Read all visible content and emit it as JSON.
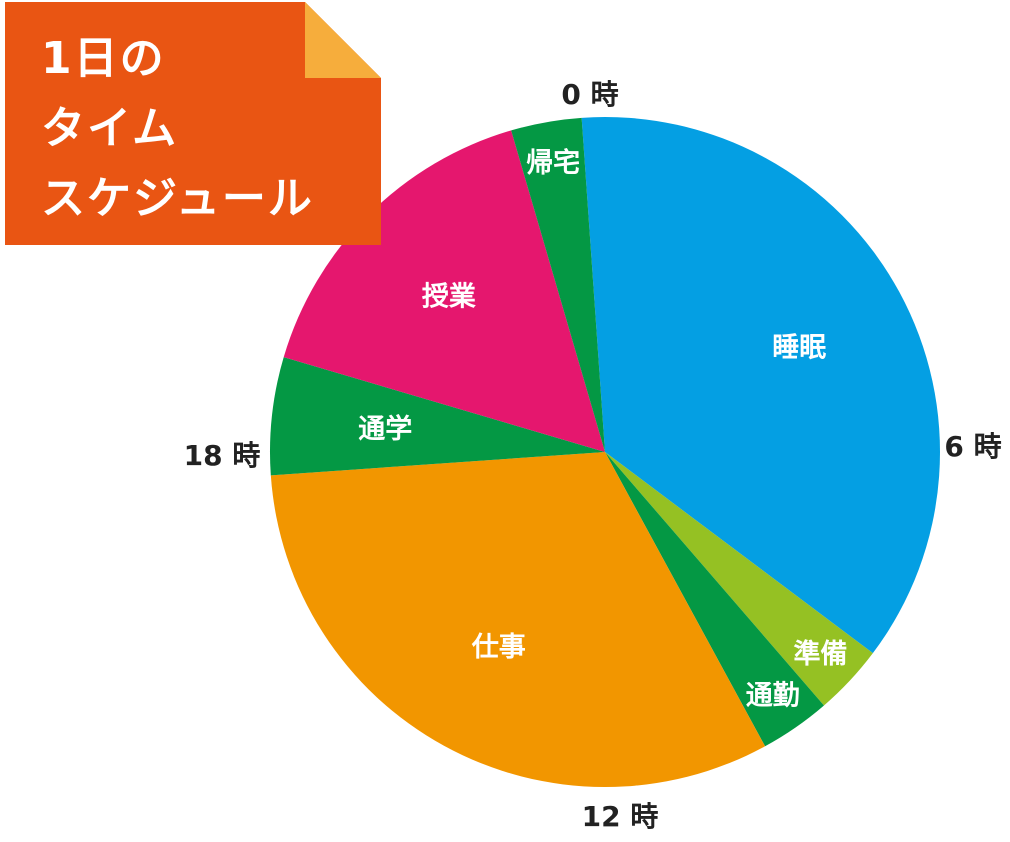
{
  "title": {
    "lines": [
      "1日の",
      "タイム",
      "スケジュール"
    ],
    "bg_color": "#e95513",
    "fold_color": "#f6ad3c"
  },
  "chart_data": {
    "type": "pie",
    "unit": "hours",
    "clockwise_from_top": true,
    "slices": [
      {
        "label": "睡眠",
        "value": 8.0,
        "color": "#049fe3"
      },
      {
        "label": "準備",
        "value": 0.75,
        "color": "#95c123"
      },
      {
        "label": "通勤",
        "value": 0.75,
        "color": "#049844"
      },
      {
        "label": "仕事",
        "value": 7.0,
        "color": "#f29600"
      },
      {
        "label": "通学",
        "value": 1.25,
        "color": "#049844"
      },
      {
        "label": "授業",
        "value": 3.5,
        "color": "#e5176e"
      },
      {
        "label": "帰宅",
        "value": 0.75,
        "color": "#049844"
      }
    ],
    "time_labels": [
      "0 時",
      "6 時",
      "12 時",
      "18 時"
    ]
  }
}
